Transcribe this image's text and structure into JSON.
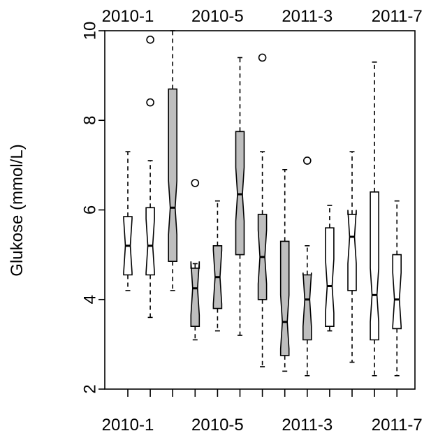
{
  "chart_data": {
    "type": "boxplot",
    "notched": true,
    "ylabel": "Glukose (mmol/L)",
    "ylim": [
      2,
      10
    ],
    "yticks": [
      2,
      4,
      6,
      8,
      10
    ],
    "xtick_labels": [
      "2010-1",
      "2010-5",
      "2011-3",
      "2011-7"
    ],
    "xtick_label_boxes": [
      1,
      5,
      9,
      13
    ],
    "colors": {
      "gray_box": "#bebebe",
      "white_box": "#ffffff",
      "stroke": "#000000"
    },
    "boxes": [
      {
        "index": 1,
        "fill": "white",
        "whisker_low": 4.2,
        "q1": 4.55,
        "median": 5.2,
        "q3": 5.85,
        "whisker_high": 7.3,
        "outliers": []
      },
      {
        "index": 2,
        "fill": "white",
        "whisker_low": 3.6,
        "q1": 4.55,
        "median": 5.2,
        "q3": 6.05,
        "whisker_high": 7.1,
        "outliers": [
          8.4,
          9.8
        ]
      },
      {
        "index": 3,
        "fill": "gray",
        "whisker_low": 4.2,
        "q1": 4.85,
        "median": 6.05,
        "q3": 8.7,
        "whisker_high": 10.0,
        "outliers": []
      },
      {
        "index": 4,
        "fill": "gray",
        "whisker_low": 3.1,
        "q1": 3.4,
        "median": 4.25,
        "q3": 4.7,
        "whisker_high": 4.8,
        "outliers": [
          6.6
        ]
      },
      {
        "index": 5,
        "fill": "gray",
        "whisker_low": 3.3,
        "q1": 3.8,
        "median": 4.5,
        "q3": 5.2,
        "whisker_high": 6.2,
        "outliers": []
      },
      {
        "index": 6,
        "fill": "gray",
        "whisker_low": 3.2,
        "q1": 5.0,
        "median": 6.35,
        "q3": 7.75,
        "whisker_high": 9.4,
        "outliers": []
      },
      {
        "index": 7,
        "fill": "gray",
        "whisker_low": 2.5,
        "q1": 4.0,
        "median": 4.95,
        "q3": 5.9,
        "whisker_high": 7.3,
        "outliers": [
          9.4
        ]
      },
      {
        "index": 8,
        "fill": "gray",
        "whisker_low": 2.4,
        "q1": 2.75,
        "median": 3.5,
        "q3": 5.3,
        "whisker_high": 6.9,
        "outliers": []
      },
      {
        "index": 9,
        "fill": "gray",
        "whisker_low": 2.3,
        "q1": 3.1,
        "median": 4.0,
        "q3": 4.55,
        "whisker_high": 5.2,
        "outliers": [
          7.1
        ]
      },
      {
        "index": 10,
        "fill": "white",
        "whisker_low": 3.3,
        "q1": 3.4,
        "median": 4.3,
        "q3": 5.6,
        "whisker_high": 6.1,
        "outliers": []
      },
      {
        "index": 11,
        "fill": "white",
        "whisker_low": 2.6,
        "q1": 4.2,
        "median": 5.4,
        "q3": 5.9,
        "whisker_high": 7.3,
        "outliers": []
      },
      {
        "index": 12,
        "fill": "white",
        "whisker_low": 2.3,
        "q1": 3.1,
        "median": 4.1,
        "q3": 6.4,
        "whisker_high": 9.3,
        "outliers": []
      },
      {
        "index": 13,
        "fill": "white",
        "whisker_low": 2.3,
        "q1": 3.35,
        "median": 4.0,
        "q3": 5.0,
        "whisker_high": 6.2,
        "outliers": []
      }
    ]
  }
}
